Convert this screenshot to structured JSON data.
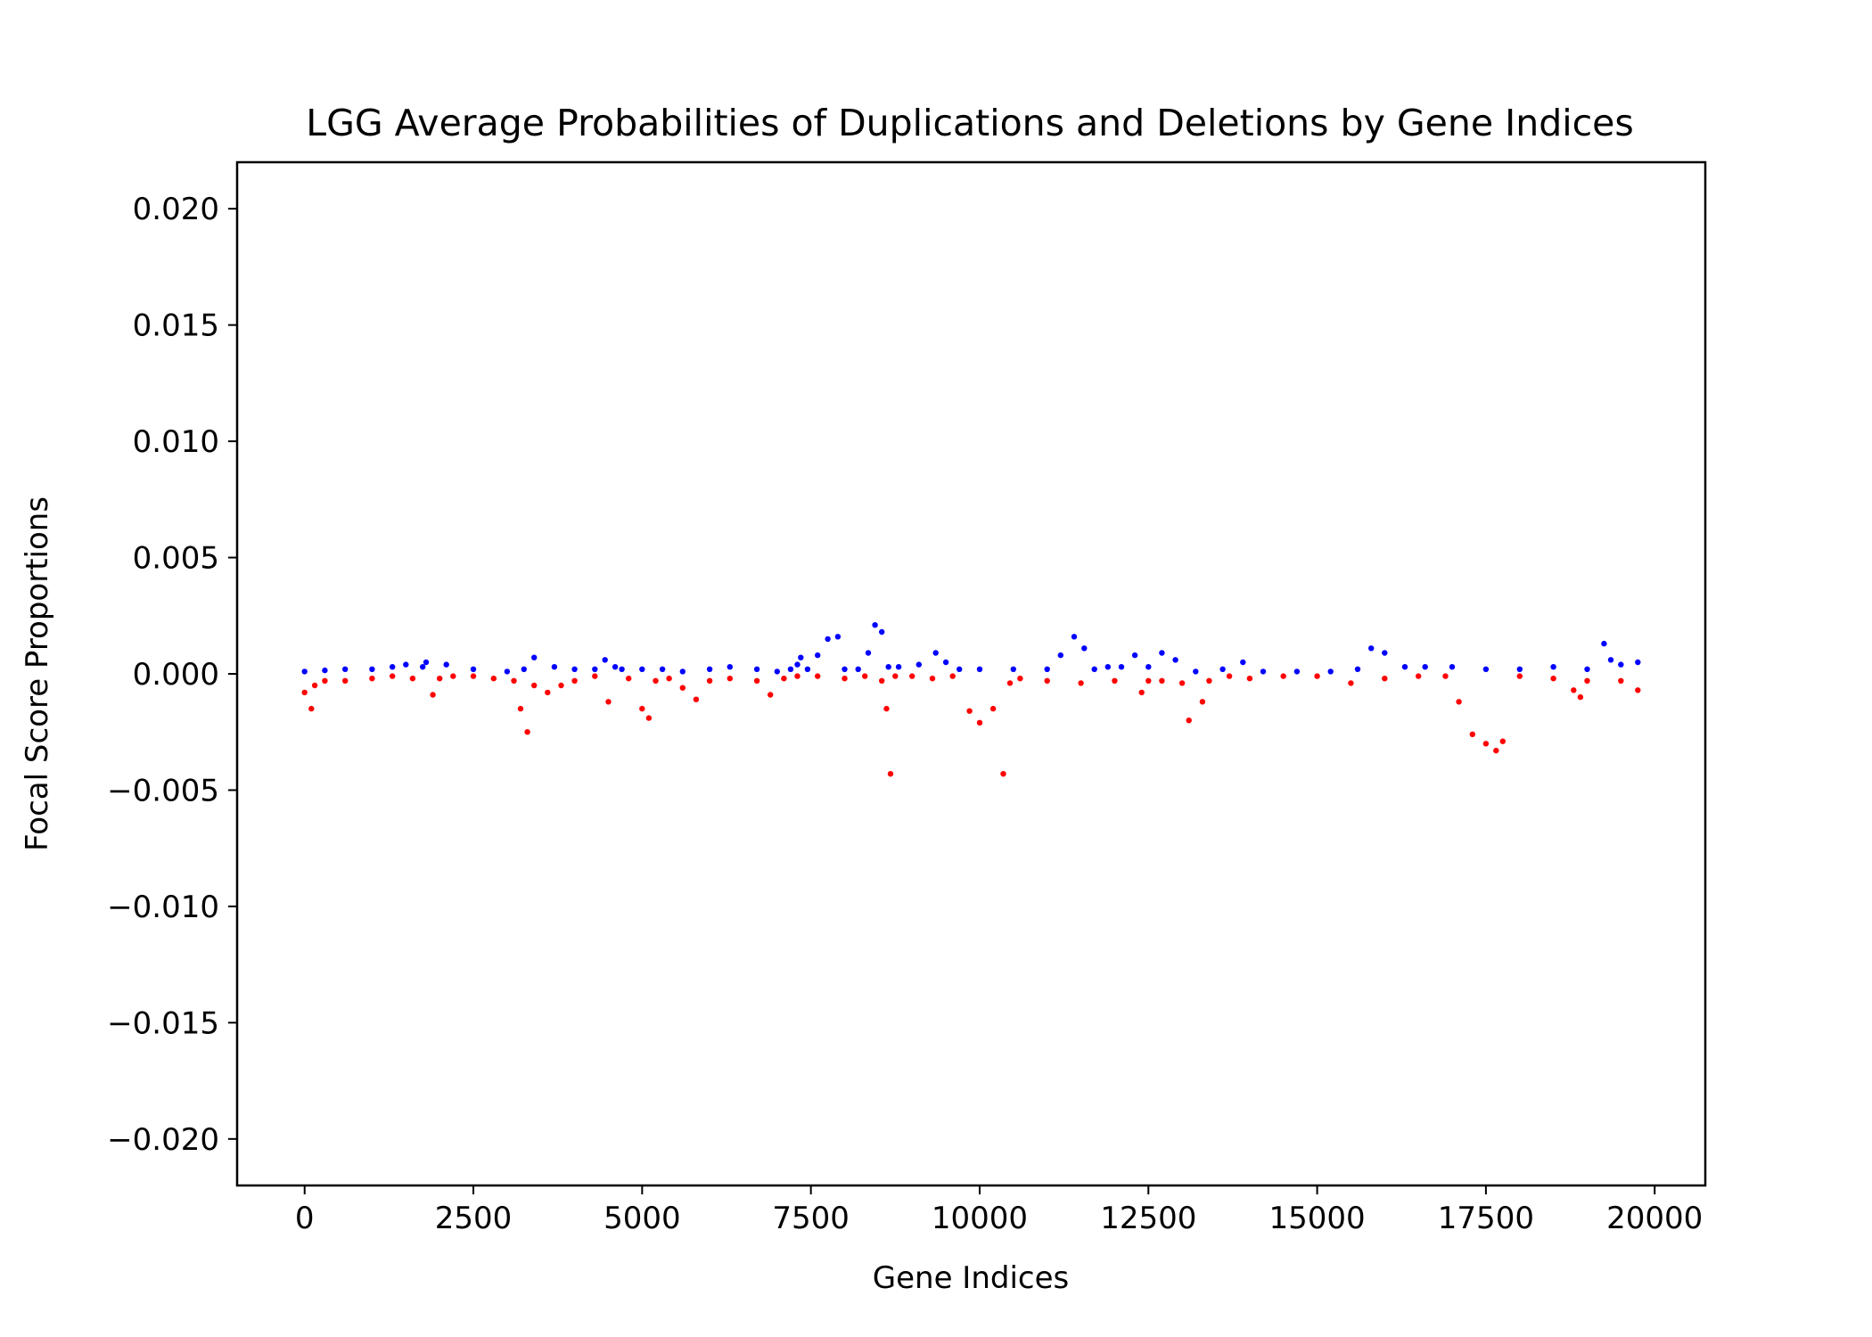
{
  "chart_data": {
    "type": "scatter",
    "title": "LGG Average Probabilities of Duplications and Deletions by Gene Indices",
    "xlabel": "Gene Indices",
    "ylabel": "Focal Score Proportions",
    "xlim": [
      -1000,
      20750
    ],
    "ylim": [
      -0.022,
      0.022
    ],
    "xticks": [
      0,
      2500,
      5000,
      7500,
      10000,
      12500,
      15000,
      17500,
      20000
    ],
    "xtick_labels": [
      "0",
      "2500",
      "5000",
      "7500",
      "10000",
      "12500",
      "15000",
      "17500",
      "20000"
    ],
    "yticks": [
      0.02,
      0.015,
      0.01,
      0.005,
      0.0,
      -0.005,
      -0.01,
      -0.015,
      -0.02
    ],
    "ytick_labels": [
      "0.020",
      "0.015",
      "0.010",
      "0.005",
      "0.000",
      "−0.005",
      "−0.010",
      "−0.015",
      "−0.020"
    ],
    "grid": false,
    "legend": "none",
    "series": [
      {
        "color": "#0000ff",
        "x": [
          0,
          300,
          600,
          1000,
          1300,
          1500,
          1750,
          1800,
          2100,
          2500,
          3000,
          3250,
          3400,
          3700,
          4000,
          4300,
          4450,
          4600,
          4700,
          5000,
          5300,
          5600,
          6000,
          6300,
          6700,
          7000,
          7200,
          7300,
          7350,
          7450,
          7600,
          7750,
          7900,
          8000,
          8200,
          8350,
          8450,
          8550,
          8650,
          8800,
          9100,
          9350,
          9500,
          9700,
          10000,
          10500,
          11000,
          11200,
          11400,
          11550,
          11700,
          11900,
          12100,
          12300,
          12500,
          12700,
          12900,
          13200,
          13600,
          13900,
          14200,
          14700,
          15200,
          15600,
          15800,
          16000,
          16300,
          16600,
          17000,
          17500,
          18000,
          18500,
          19000,
          19250,
          19350,
          19500,
          19750
        ],
        "y": [
          0.0001,
          0.00015,
          0.0002,
          0.0002,
          0.0003,
          0.0004,
          0.0003,
          0.0005,
          0.0004,
          0.0002,
          0.0001,
          0.0002,
          0.0007,
          0.0003,
          0.0002,
          0.0002,
          0.0006,
          0.0003,
          0.0002,
          0.0002,
          0.0002,
          0.0001,
          0.0002,
          0.0003,
          0.0002,
          0.0001,
          0.0002,
          0.0004,
          0.0007,
          0.0002,
          0.0008,
          0.0015,
          0.0016,
          0.0002,
          0.0002,
          0.0009,
          0.0021,
          0.0018,
          0.0003,
          0.0003,
          0.0004,
          0.0009,
          0.0005,
          0.0002,
          0.0002,
          0.0002,
          0.0002,
          0.0008,
          0.0016,
          0.0011,
          0.0002,
          0.0003,
          0.0003,
          0.0008,
          0.0003,
          0.0009,
          0.0006,
          0.0001,
          0.0002,
          0.0005,
          0.0001,
          0.0001,
          0.0001,
          0.0002,
          0.0011,
          0.0009,
          0.0003,
          0.0003,
          0.0003,
          0.0002,
          0.0002,
          0.0003,
          0.0002,
          0.0013,
          0.0006,
          0.0004,
          0.0005
        ]
      },
      {
        "color": "#ff0000",
        "x": [
          0,
          100,
          150,
          300,
          600,
          1000,
          1300,
          1600,
          1900,
          2000,
          2200,
          2500,
          2800,
          3100,
          3200,
          3300,
          3400,
          3600,
          3800,
          4000,
          4300,
          4500,
          4800,
          5000,
          5100,
          5200,
          5400,
          5600,
          5800,
          6000,
          6300,
          6700,
          6900,
          7100,
          7300,
          7600,
          8000,
          8300,
          8550,
          8620,
          8680,
          8750,
          9000,
          9300,
          9600,
          9850,
          10000,
          10200,
          10350,
          10450,
          10600,
          11000,
          11500,
          12000,
          12400,
          12500,
          12700,
          13000,
          13100,
          13300,
          13400,
          13700,
          14000,
          14500,
          15000,
          15500,
          16000,
          16500,
          16900,
          17100,
          17300,
          17500,
          17650,
          17750,
          18000,
          18500,
          18800,
          18900,
          19000,
          19500,
          19750
        ],
        "y": [
          -0.0008,
          -0.0015,
          -0.0005,
          -0.0003,
          -0.0003,
          -0.0002,
          -0.0001,
          -0.0002,
          -0.0009,
          -0.0002,
          -0.0001,
          -0.0001,
          -0.0002,
          -0.0003,
          -0.0015,
          -0.0025,
          -0.0005,
          -0.0008,
          -0.0005,
          -0.0003,
          -0.0001,
          -0.0012,
          -0.0002,
          -0.0015,
          -0.0019,
          -0.0003,
          -0.0002,
          -0.0006,
          -0.0011,
          -0.0003,
          -0.0002,
          -0.0003,
          -0.0009,
          -0.0002,
          -0.0001,
          -0.0001,
          -0.0002,
          -0.0001,
          -0.0003,
          -0.0015,
          -0.0043,
          -0.0001,
          -0.0001,
          -0.0002,
          -0.0001,
          -0.0016,
          -0.0021,
          -0.0015,
          -0.0043,
          -0.0004,
          -0.0002,
          -0.0003,
          -0.0004,
          -0.0003,
          -0.0008,
          -0.0003,
          -0.0003,
          -0.0004,
          -0.002,
          -0.0012,
          -0.0003,
          -0.0001,
          -0.0002,
          -0.0001,
          -0.0001,
          -0.0004,
          -0.0002,
          -0.0001,
          -0.0001,
          -0.0012,
          -0.0026,
          -0.003,
          -0.0033,
          -0.0029,
          -0.0001,
          -0.0002,
          -0.0007,
          -0.001,
          -0.0003,
          -0.0003,
          -0.0007
        ]
      }
    ]
  }
}
